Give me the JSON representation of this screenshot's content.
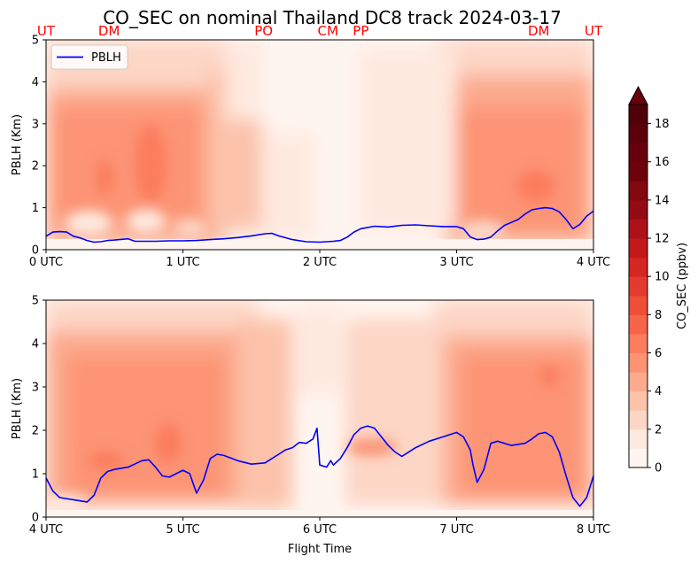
{
  "figure": {
    "title": "CO_SEC on nominal Thailand DC8 track 2024-03-17"
  },
  "chart_data": [
    {
      "type": "contour",
      "panel": "top",
      "ylabel": "PBLH (Km)",
      "xlabel": "",
      "xlim": [
        0,
        4
      ],
      "ylim": [
        0,
        5
      ],
      "x_ticks": [
        0,
        1,
        2,
        3,
        4
      ],
      "x_tick_labels": [
        "0 UTC",
        "1 UTC",
        "2 UTC",
        "3 UTC",
        "4 UTC"
      ],
      "y_ticks": [
        0,
        1,
        2,
        3,
        4,
        5
      ],
      "y_tick_labels": [
        "0",
        "1",
        "2",
        "3",
        "4",
        "5"
      ],
      "legend": {
        "position": "upper-left",
        "entries": [
          "PBLH"
        ]
      },
      "location_labels": [
        {
          "text": "UT",
          "x": 0.0
        },
        {
          "text": "DM",
          "x": 0.46
        },
        {
          "text": "PO",
          "x": 1.59
        },
        {
          "text": "CM",
          "x": 2.06
        },
        {
          "text": "PP",
          "x": 2.3
        },
        {
          "text": "DM",
          "x": 3.6
        },
        {
          "text": "UT",
          "x": 4.0
        }
      ],
      "series": [
        {
          "name": "PBLH",
          "color": "#0000ff",
          "x": [
            0,
            0.05,
            0.1,
            0.15,
            0.2,
            0.25,
            0.3,
            0.35,
            0.4,
            0.45,
            0.5,
            0.6,
            0.65,
            0.7,
            0.8,
            0.9,
            1.0,
            1.1,
            1.2,
            1.3,
            1.4,
            1.5,
            1.6,
            1.65,
            1.7,
            1.8,
            1.9,
            2.0,
            2.1,
            2.15,
            2.2,
            2.25,
            2.3,
            2.4,
            2.5,
            2.6,
            2.7,
            2.8,
            2.9,
            3.0,
            3.05,
            3.1,
            3.15,
            3.2,
            3.25,
            3.3,
            3.35,
            3.4,
            3.45,
            3.5,
            3.55,
            3.6,
            3.65,
            3.7,
            3.75,
            3.8,
            3.85,
            3.9,
            3.95,
            4.0
          ],
          "y": [
            0.32,
            0.42,
            0.43,
            0.42,
            0.32,
            0.28,
            0.22,
            0.18,
            0.19,
            0.22,
            0.23,
            0.26,
            0.2,
            0.2,
            0.2,
            0.21,
            0.21,
            0.22,
            0.24,
            0.26,
            0.29,
            0.33,
            0.38,
            0.39,
            0.33,
            0.24,
            0.19,
            0.18,
            0.2,
            0.22,
            0.3,
            0.42,
            0.5,
            0.56,
            0.54,
            0.58,
            0.59,
            0.57,
            0.55,
            0.55,
            0.5,
            0.3,
            0.24,
            0.25,
            0.3,
            0.45,
            0.58,
            0.65,
            0.72,
            0.85,
            0.95,
            0.98,
            1.0,
            0.98,
            0.9,
            0.72,
            0.5,
            0.6,
            0.8,
            0.92
          ]
        }
      ]
    },
    {
      "type": "contour",
      "panel": "bottom",
      "ylabel": "PBLH (Km)",
      "xlabel": "Flight Time",
      "xlim": [
        4,
        8
      ],
      "ylim": [
        0,
        5
      ],
      "x_ticks": [
        4,
        5,
        6,
        7,
        8
      ],
      "x_tick_labels": [
        "4 UTC",
        "5 UTC",
        "6 UTC",
        "7 UTC",
        "8 UTC"
      ],
      "y_ticks": [
        0,
        1,
        2,
        3,
        4,
        5
      ],
      "y_tick_labels": [
        "0",
        "1",
        "2",
        "3",
        "4",
        "5"
      ],
      "series": [
        {
          "color": "#0000ff",
          "x": [
            4.0,
            4.05,
            4.1,
            4.2,
            4.3,
            4.35,
            4.4,
            4.45,
            4.5,
            4.6,
            4.7,
            4.75,
            4.8,
            4.85,
            4.9,
            5.0,
            5.05,
            5.1,
            5.15,
            5.2,
            5.25,
            5.3,
            5.4,
            5.5,
            5.6,
            5.7,
            5.75,
            5.8,
            5.85,
            5.9,
            5.95,
            5.98,
            6.0,
            6.05,
            6.08,
            6.1,
            6.15,
            6.2,
            6.25,
            6.3,
            6.35,
            6.4,
            6.5,
            6.55,
            6.6,
            6.7,
            6.8,
            6.9,
            7.0,
            7.05,
            7.1,
            7.12,
            7.15,
            7.2,
            7.25,
            7.3,
            7.4,
            7.5,
            7.55,
            7.6,
            7.65,
            7.7,
            7.75,
            7.8,
            7.85,
            7.9,
            7.95,
            8.0
          ],
          "y": [
            0.9,
            0.6,
            0.45,
            0.4,
            0.35,
            0.5,
            0.9,
            1.05,
            1.1,
            1.15,
            1.3,
            1.32,
            1.15,
            0.95,
            0.92,
            1.08,
            1.0,
            0.55,
            0.85,
            1.35,
            1.45,
            1.42,
            1.3,
            1.22,
            1.25,
            1.45,
            1.55,
            1.6,
            1.72,
            1.7,
            1.8,
            2.05,
            1.2,
            1.15,
            1.3,
            1.2,
            1.35,
            1.6,
            1.9,
            2.05,
            2.1,
            2.05,
            1.65,
            1.5,
            1.4,
            1.6,
            1.75,
            1.85,
            1.95,
            1.85,
            1.55,
            1.2,
            0.8,
            1.1,
            1.7,
            1.75,
            1.65,
            1.7,
            1.8,
            1.92,
            1.95,
            1.85,
            1.5,
            0.95,
            0.45,
            0.25,
            0.45,
            0.95
          ]
        }
      ]
    },
    {
      "type": "colorbar",
      "label": "CO_SEC (ppbv)",
      "range": [
        0,
        19
      ],
      "extend": "max",
      "ticks": [
        0,
        2,
        4,
        6,
        8,
        10,
        12,
        14,
        16,
        18
      ],
      "tick_labels": [
        "0",
        "2",
        "4",
        "6",
        "8",
        "10",
        "12",
        "14",
        "16",
        "18"
      ],
      "levels": [
        0,
        1,
        2,
        3,
        4,
        5,
        6,
        7,
        8,
        9,
        10,
        11,
        12,
        13,
        14,
        15,
        16,
        17,
        18,
        19
      ],
      "colors": [
        "#fff5f0",
        "#fee9df",
        "#fdd6c6",
        "#fcc2aa",
        "#fcaa8e",
        "#fc9474",
        "#fb7d5d",
        "#f6644a",
        "#ef4e38",
        "#e33b2e",
        "#d52721",
        "#c2191c",
        "#ad1218",
        "#950b14",
        "#82070f",
        "#6d020c",
        "#67000d",
        "#5a000b",
        "#4f0009"
      ],
      "extend_color": "#67000d"
    }
  ]
}
